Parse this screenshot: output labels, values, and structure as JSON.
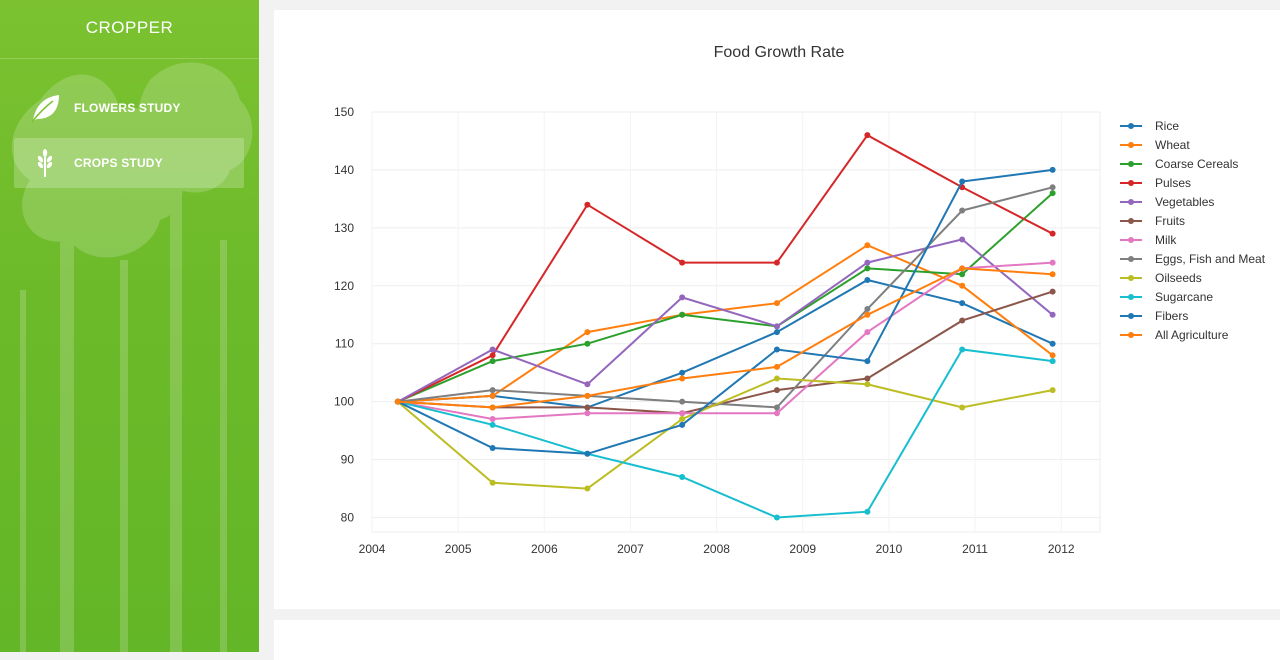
{
  "app": {
    "brand": "CROPPER"
  },
  "sidebar": {
    "items": [
      {
        "label": "FLOWERS STUDY",
        "icon": "leaf-icon",
        "active": false
      },
      {
        "label": "CROPS STUDY",
        "icon": "wheat-icon",
        "active": true
      }
    ]
  },
  "colors": {
    "sidebar_green": "#6cba2a",
    "series": [
      "#1f77b4",
      "#ff7f0e",
      "#2ca02c",
      "#d62728",
      "#9467bd",
      "#8c564b",
      "#e377c2",
      "#7f7f7f",
      "#bcbd22",
      "#17becf",
      "#1f77b4",
      "#ff7f0e"
    ]
  },
  "chart_data": {
    "type": "line",
    "title": "Food Growth Rate",
    "xlabel": "",
    "ylabel": "",
    "x": [
      2004.3,
      2005.4,
      2006.5,
      2007.6,
      2008.7,
      2009.75,
      2010.85,
      2011.9
    ],
    "xticks": [
      2004,
      2005,
      2006,
      2007,
      2008,
      2009,
      2010,
      2011,
      2012
    ],
    "yticks": [
      80,
      90,
      100,
      110,
      120,
      130,
      140,
      150
    ],
    "xlim": [
      2004,
      2012.45
    ],
    "ylim": [
      77.5,
      150
    ],
    "grid": true,
    "legend_position": "right",
    "series": [
      {
        "name": "Rice",
        "values": [
          100,
          101,
          99,
          105,
          112,
          121,
          117,
          110
        ]
      },
      {
        "name": "Wheat",
        "values": [
          100,
          101,
          112,
          115,
          117,
          127,
          120,
          108
        ]
      },
      {
        "name": "Coarse Cereals",
        "values": [
          100,
          107,
          110,
          115,
          113,
          123,
          122,
          136
        ]
      },
      {
        "name": "Pulses",
        "values": [
          100,
          108,
          134,
          124,
          124,
          146,
          137,
          129
        ]
      },
      {
        "name": "Vegetables",
        "values": [
          100,
          109,
          103,
          118,
          113,
          124,
          128,
          115
        ]
      },
      {
        "name": "Fruits",
        "values": [
          100,
          99,
          99,
          98,
          102,
          104,
          114,
          119
        ]
      },
      {
        "name": "Milk",
        "values": [
          100,
          97,
          98,
          98,
          98,
          112,
          123,
          124
        ]
      },
      {
        "name": "Eggs, Fish and Meat",
        "values": [
          100,
          102,
          101,
          100,
          99,
          116,
          133,
          137
        ]
      },
      {
        "name": "Oilseeds",
        "values": [
          100,
          86,
          85,
          97,
          104,
          103,
          99,
          102
        ]
      },
      {
        "name": "Sugarcane",
        "values": [
          100,
          96,
          91,
          87,
          80,
          81,
          109,
          107
        ]
      },
      {
        "name": "Fibers",
        "values": [
          100,
          92,
          91,
          96,
          109,
          107,
          138,
          140
        ]
      },
      {
        "name": "All Agriculture",
        "values": [
          100,
          99,
          101,
          104,
          106,
          115,
          123,
          122
        ]
      }
    ]
  }
}
